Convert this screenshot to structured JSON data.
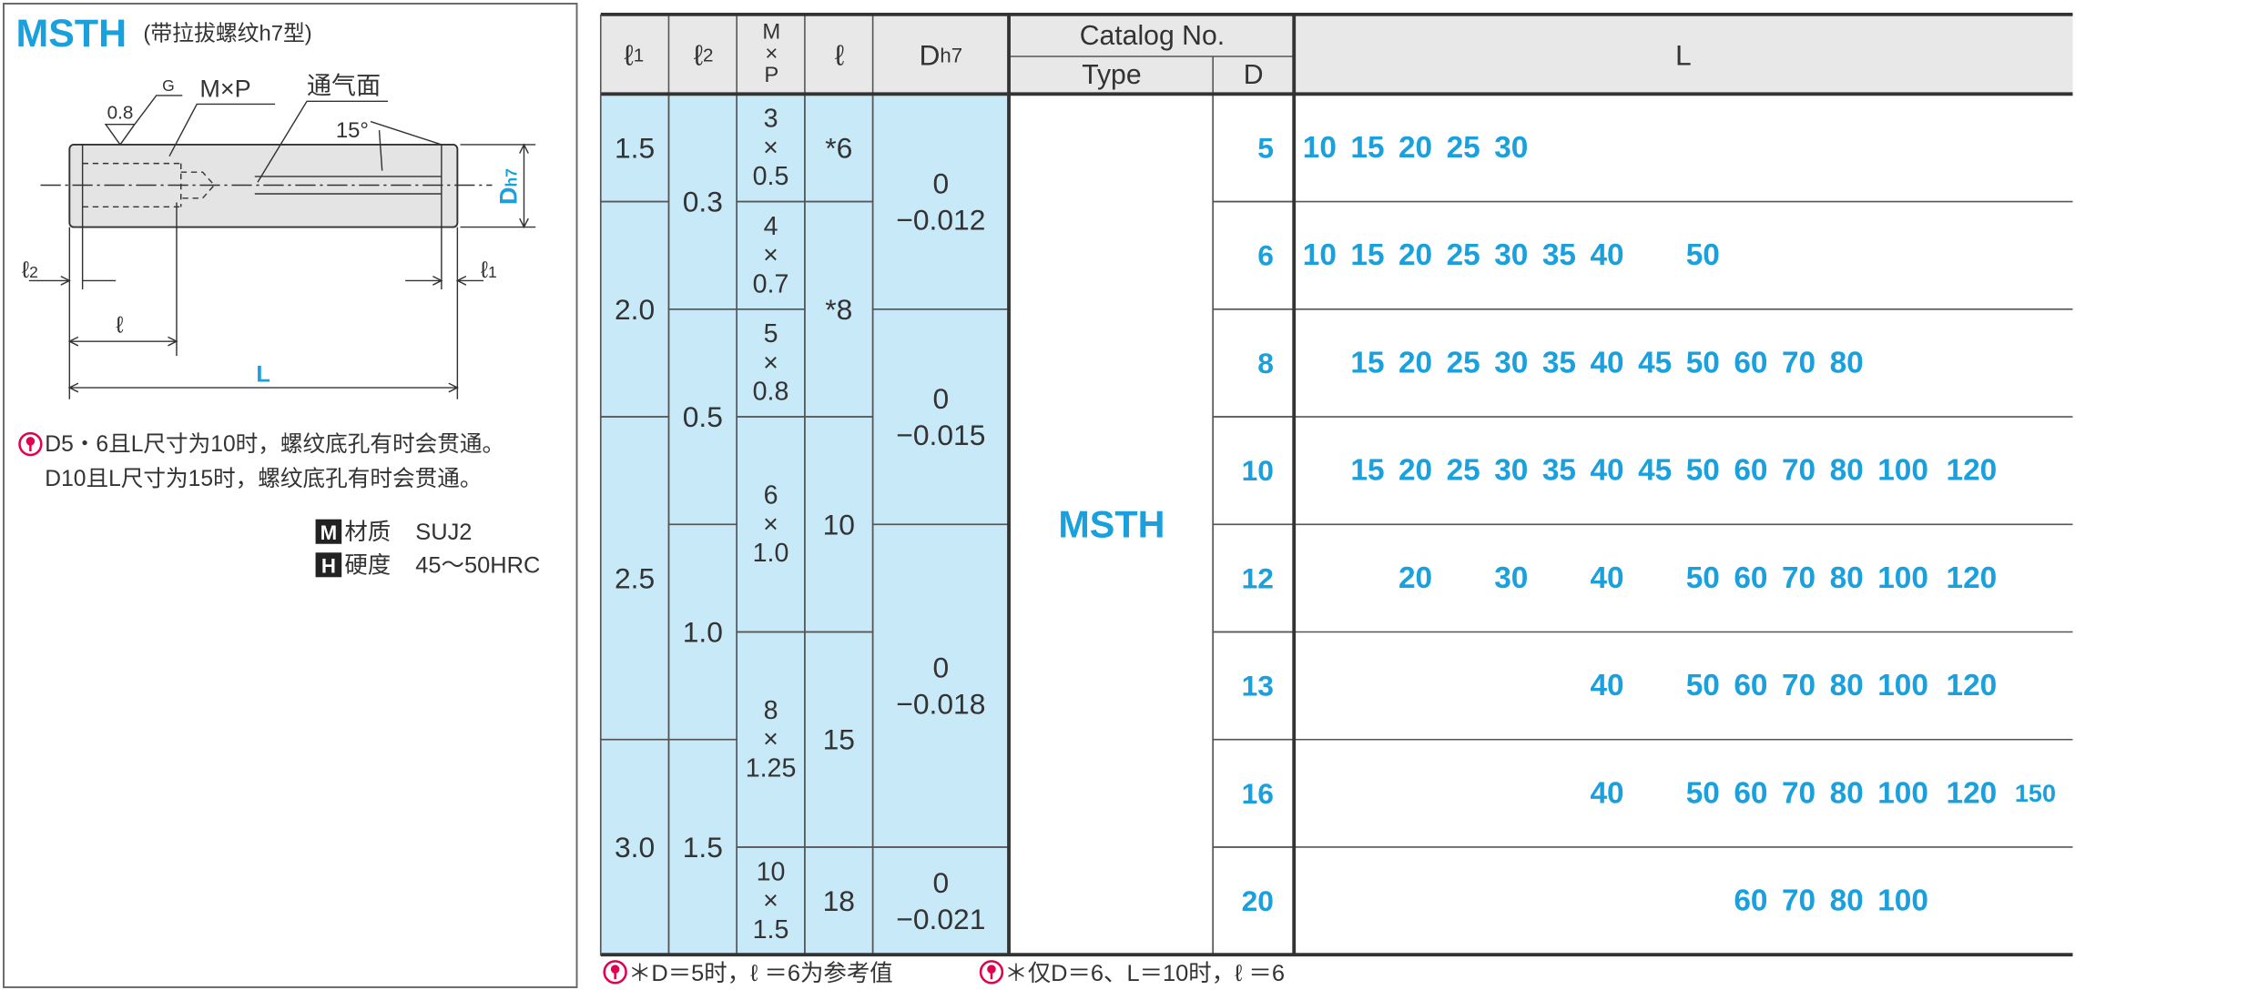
{
  "header": {
    "title": "MSTH",
    "subtitle": "(带拉拔螺纹h7型)"
  },
  "diagram": {
    "finish_symbol": "G",
    "roughness": "0.8",
    "thread": "M×P",
    "vent": "通气面",
    "angle": "15°",
    "diameter": {
      "main": "D",
      "sub": "h7"
    },
    "l2": {
      "main": "ℓ",
      "sub": "2"
    },
    "l1": {
      "main": "ℓ",
      "sub": "1"
    },
    "l": "ℓ",
    "L": "L"
  },
  "notes": [
    "D5・6且L尺寸为10时，螺纹底孔有时会贯通。",
    "D10且L尺寸为15时，螺纹底孔有时会贯通。"
  ],
  "specs": [
    {
      "icon": "M",
      "label": "材质",
      "value": "SUJ2"
    },
    {
      "icon": "H",
      "label": "硬度",
      "value": "45～50HRC"
    }
  ],
  "table": {
    "headers": {
      "l1": {
        "main": "ℓ",
        "sub": "1"
      },
      "l2": {
        "main": "ℓ",
        "sub": "2"
      },
      "mp": [
        "M",
        "×",
        "P"
      ],
      "l": "ℓ",
      "dh7": {
        "main": "D",
        "sub": "h7"
      },
      "catalog": "Catalog No.",
      "type": "Type",
      "d": "D",
      "L": "L"
    },
    "l1": [
      "1.5",
      "2.0",
      "2.5",
      "3.0"
    ],
    "l2": [
      "0.3",
      "0.5",
      "1.0",
      "1.5"
    ],
    "mp": [
      [
        "3",
        "×",
        "0.5"
      ],
      [
        "4",
        "×",
        "0.7"
      ],
      [
        "5",
        "×",
        "0.8"
      ],
      [
        "6",
        "×",
        "1.0"
      ],
      [
        "8",
        "×",
        "1.25"
      ],
      [
        "10",
        "×",
        "1.5"
      ]
    ],
    "l": [
      "*6",
      "*8",
      "10",
      "15",
      "18"
    ],
    "dh7": [
      [
        "0",
        "−0.012"
      ],
      [
        "0",
        "−0.015"
      ],
      [
        "0",
        "−0.018"
      ],
      [
        "0",
        "−0.021"
      ]
    ],
    "type": "MSTH",
    "d": [
      5,
      6,
      8,
      10,
      12,
      13,
      16,
      20
    ],
    "L": [
      [
        10,
        15,
        20,
        25,
        30
      ],
      [
        10,
        15,
        20,
        25,
        30,
        35,
        40,
        50
      ],
      [
        15,
        20,
        25,
        30,
        35,
        40,
        45,
        50,
        60,
        70,
        80
      ],
      [
        15,
        20,
        25,
        30,
        35,
        40,
        45,
        50,
        60,
        70,
        80,
        100,
        120
      ],
      [
        20,
        30,
        40,
        50,
        60,
        70,
        80,
        100,
        120
      ],
      [
        40,
        50,
        60,
        70,
        80,
        100,
        120
      ],
      [
        40,
        50,
        60,
        70,
        80,
        100,
        120,
        150
      ],
      [
        60,
        70,
        80,
        100
      ]
    ]
  },
  "footnotes": [
    "＊D＝5时，ℓ ＝6为参考值",
    "＊仅D＝6、L＝10时，ℓ ＝6"
  ]
}
